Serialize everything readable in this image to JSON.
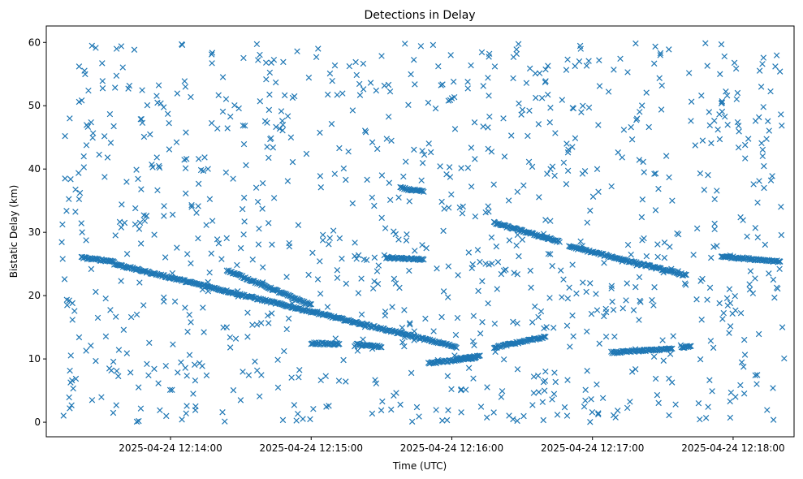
{
  "chart_data": {
    "type": "scatter",
    "title": "Detections in Delay",
    "xlabel": "Time (UTC)",
    "ylabel": "Bistatic Delay (km)",
    "marker": "x",
    "color": "#1f77b4",
    "grid": false,
    "xlim": [
      "2025-04-24 12:13:07",
      "2025-04-24 12:18:26"
    ],
    "ylim": [
      -2.3,
      62.6
    ],
    "xticks": [
      "2025-04-24 12:14:00",
      "2025-04-24 12:15:00",
      "2025-04-24 12:16:00",
      "2025-04-24 12:17:00",
      "2025-04-24 12:18:00"
    ],
    "yticks": [
      0,
      10,
      20,
      30,
      40,
      50,
      60
    ],
    "tracks": [
      {
        "t_start": "2025-04-24 12:13:22",
        "t_end": "2025-04-24 12:13:36",
        "delay_start": 26.0,
        "delay_end": 25.4
      },
      {
        "t_start": "2025-04-24 12:13:36",
        "t_end": "2025-04-24 12:16:02",
        "delay_start": 25.0,
        "delay_end": 11.9
      },
      {
        "t_start": "2025-04-24 12:14:24",
        "t_end": "2025-04-24 12:15:00",
        "delay_start": 24.0,
        "delay_end": 18.5
      },
      {
        "t_start": "2025-04-24 12:15:00",
        "t_end": "2025-04-24 12:15:12",
        "delay_start": 12.5,
        "delay_end": 12.3
      },
      {
        "t_start": "2025-04-24 12:15:19",
        "t_end": "2025-04-24 12:15:30",
        "delay_start": 12.3,
        "delay_end": 11.9
      },
      {
        "t_start": "2025-04-24 12:15:32",
        "t_end": "2025-04-24 12:15:48",
        "delay_start": 26.0,
        "delay_end": 25.7
      },
      {
        "t_start": "2025-04-24 12:15:38",
        "t_end": "2025-04-24 12:15:48",
        "delay_start": 37.0,
        "delay_end": 36.4
      },
      {
        "t_start": "2025-04-24 12:15:50",
        "t_end": "2025-04-24 12:16:10",
        "delay_start": 9.3,
        "delay_end": 10.2
      },
      {
        "t_start": "2025-04-24 12:16:18",
        "t_end": "2025-04-24 12:16:40",
        "delay_start": 11.8,
        "delay_end": 13.5
      },
      {
        "t_start": "2025-04-24 12:16:18",
        "t_end": "2025-04-24 12:16:46",
        "delay_start": 31.5,
        "delay_end": 28.5
      },
      {
        "t_start": "2025-04-24 12:16:50",
        "t_end": "2025-04-24 12:17:40",
        "delay_start": 27.8,
        "delay_end": 23.2
      },
      {
        "t_start": "2025-04-24 12:17:08",
        "t_end": "2025-04-24 12:17:34",
        "delay_start": 11.0,
        "delay_end": 11.6
      },
      {
        "t_start": "2025-04-24 12:17:38",
        "t_end": "2025-04-24 12:17:42",
        "delay_start": 11.8,
        "delay_end": 12.0
      },
      {
        "t_start": "2025-04-24 12:17:55",
        "t_end": "2025-04-24 12:18:20",
        "delay_start": 26.2,
        "delay_end": 25.4
      },
      {
        "t_start": "2025-04-24 12:16:02",
        "t_end": "2025-04-24 12:16:12",
        "delay_start": 10.0,
        "delay_end": 10.4
      }
    ],
    "scatter_sample": [
      [
        "2025-04-24 12:13:14",
        25.8
      ],
      [
        "2025-04-24 12:13:15",
        38.5
      ],
      [
        "2025-04-24 12:13:15",
        45.2
      ],
      [
        "2025-04-24 12:13:17",
        48.0
      ],
      [
        "2025-04-24 12:13:18",
        6.6
      ],
      [
        "2025-04-24 12:13:17",
        2.2
      ],
      [
        "2025-04-24 12:13:21",
        56.2
      ],
      [
        "2025-04-24 12:13:23",
        42.0
      ],
      [
        "2025-04-24 12:13:24",
        11.3
      ],
      [
        "2025-04-24 12:13:26",
        12.1
      ],
      [
        "2025-04-24 12:13:29",
        16.5
      ],
      [
        "2025-04-24 12:13:31",
        53.9
      ],
      [
        "2025-04-24 12:13:37",
        59.0
      ],
      [
        "2025-04-24 12:13:39",
        59.4
      ],
      [
        "2025-04-24 12:13:42",
        52.7
      ],
      [
        "2025-04-24 12:13:45",
        33.8
      ],
      [
        "2025-04-24 12:13:48",
        47.3
      ],
      [
        "2025-04-24 12:13:52",
        40.7
      ],
      [
        "2025-04-24 12:13:58",
        8.9
      ],
      [
        "2025-04-24 12:14:01",
        12.3
      ],
      [
        "2025-04-24 12:14:05",
        59.6
      ],
      [
        "2025-04-24 12:14:09",
        34.3
      ],
      [
        "2025-04-24 12:14:12",
        41.6
      ],
      [
        "2025-04-24 12:14:20",
        46.4
      ],
      [
        "2025-04-24 12:14:24",
        15.0
      ],
      [
        "2025-04-24 12:14:30",
        27.5
      ],
      [
        "2025-04-24 12:14:36",
        9.6
      ],
      [
        "2025-04-24 12:14:43",
        56.8
      ],
      [
        "2025-04-24 12:14:50",
        38.1
      ],
      [
        "2025-04-24 12:14:58",
        42.4
      ],
      [
        "2025-04-24 12:15:05",
        29.6
      ],
      [
        "2025-04-24 12:15:12",
        43.3
      ],
      [
        "2025-04-24 12:15:19",
        56.9
      ],
      [
        "2025-04-24 12:15:26",
        35.5
      ],
      [
        "2025-04-24 12:15:33",
        53.3
      ],
      [
        "2025-04-24 12:15:40",
        59.8
      ],
      [
        "2025-04-24 12:15:46",
        0.9
      ],
      [
        "2025-04-24 12:15:52",
        59.6
      ],
      [
        "2025-04-24 12:15:59",
        40.3
      ],
      [
        "2025-04-24 12:16:04",
        5.2
      ],
      [
        "2025-04-24 12:16:10",
        32.5
      ],
      [
        "2025-04-24 12:16:16",
        58.2
      ],
      [
        "2025-04-24 12:16:22",
        48.0
      ],
      [
        "2025-04-24 12:16:28",
        36.4
      ],
      [
        "2025-04-24 12:16:35",
        7.2
      ],
      [
        "2025-04-24 12:16:41",
        56.3
      ],
      [
        "2025-04-24 12:16:49",
        44.0
      ],
      [
        "2025-04-24 12:16:55",
        59.0
      ],
      [
        "2025-04-24 12:17:02",
        17.7
      ],
      [
        "2025-04-24 12:17:09",
        1.1
      ],
      [
        "2025-04-24 12:17:15",
        55.3
      ],
      [
        "2025-04-24 12:17:22",
        39.5
      ],
      [
        "2025-04-24 12:17:29",
        58.3
      ],
      [
        "2025-04-24 12:17:34",
        35.0
      ],
      [
        "2025-04-24 12:17:42",
        47.6
      ],
      [
        "2025-04-24 12:17:49",
        56.3
      ],
      [
        "2025-04-24 12:17:55",
        59.7
      ],
      [
        "2025-04-24 12:18:01",
        4.0
      ],
      [
        "2025-04-24 12:18:07",
        21.8
      ],
      [
        "2025-04-24 12:18:12",
        53.0
      ],
      [
        "2025-04-24 12:18:18",
        56.2
      ],
      [
        "2025-04-24 12:18:20",
        55.4
      ],
      [
        "2025-04-24 12:18:21",
        15.0
      ],
      [
        "2025-04-24 12:18:20",
        25.4
      ],
      [
        "2025-04-24 12:18:19",
        21.1
      ],
      [
        "2025-04-24 12:18:17",
        5.4
      ]
    ],
    "noise_points_per_second": 3,
    "noise_delay_range": [
      0,
      60
    ]
  }
}
